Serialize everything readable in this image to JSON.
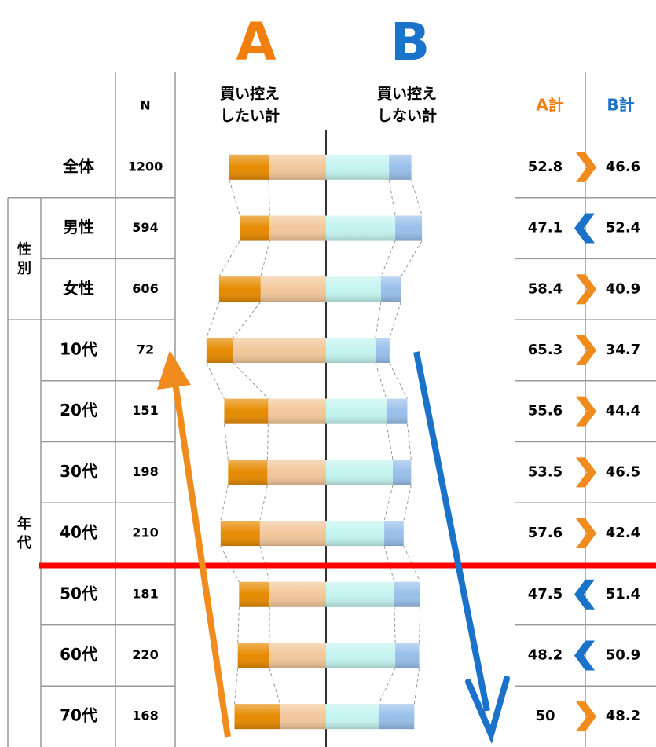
{
  "chart_data": {
    "type": "butterfly",
    "title_a": "A",
    "title_b": "B",
    "header_n": "N",
    "header_a": [
      "買い控え",
      "したい計"
    ],
    "header_b": [
      "買い控え",
      "しない計"
    ],
    "header_a_total": "A計",
    "header_b_total": "B計",
    "colors": {
      "a_strong": "#e68a00",
      "a_weak": "#f2c79a",
      "b_weak": "#c4f4f0",
      "b_strong": "#99bfea",
      "a_mark": "#f08c1e",
      "b_mark": "#1a73c8"
    },
    "groups": [
      {
        "label": [
          "性",
          "別"
        ],
        "rows": [
          1,
          2
        ]
      },
      {
        "label": [
          "年",
          "代"
        ],
        "rows": [
          3,
          9
        ]
      }
    ],
    "rows": [
      {
        "label": "全体",
        "n": 1200,
        "a_strong": 21.5,
        "a_weak": 31.3,
        "b_weak": 34.4,
        "b_strong": 12.2,
        "a_total": 52.8,
        "b_total": 46.6
      },
      {
        "label": "男性",
        "n": 594,
        "a_strong": 16.3,
        "a_weak": 30.8,
        "b_weak": 37.8,
        "b_strong": 14.6,
        "a_total": 47.1,
        "b_total": 52.4
      },
      {
        "label": "女性",
        "n": 606,
        "a_strong": 22.7,
        "a_weak": 35.7,
        "b_weak": 30.0,
        "b_strong": 10.9,
        "a_total": 58.4,
        "b_total": 40.9
      },
      {
        "label": "10代",
        "n": 72,
        "a_strong": 14.6,
        "a_weak": 50.7,
        "b_weak": 27.0,
        "b_strong": 7.7,
        "a_total": 65.3,
        "b_total": 34.7
      },
      {
        "label": "20代",
        "n": 151,
        "a_strong": 24.0,
        "a_weak": 31.6,
        "b_weak": 33.0,
        "b_strong": 11.4,
        "a_total": 55.6,
        "b_total": 44.4
      },
      {
        "label": "30代",
        "n": 198,
        "a_strong": 21.5,
        "a_weak": 32.0,
        "b_weak": 36.5,
        "b_strong": 10.0,
        "a_total": 53.5,
        "b_total": 46.5
      },
      {
        "label": "40代",
        "n": 210,
        "a_strong": 21.5,
        "a_weak": 36.1,
        "b_weak": 31.8,
        "b_strong": 10.6,
        "a_total": 57.6,
        "b_total": 42.4
      },
      {
        "label": "50代",
        "n": 181,
        "a_strong": 16.7,
        "a_weak": 30.8,
        "b_weak": 37.3,
        "b_strong": 14.1,
        "a_total": 47.5,
        "b_total": 51.4
      },
      {
        "label": "60代",
        "n": 220,
        "a_strong": 17.2,
        "a_weak": 31.0,
        "b_weak": 37.8,
        "b_strong": 13.1,
        "a_total": 48.2,
        "b_total": 50.9
      },
      {
        "label": "70代",
        "n": 168,
        "a_strong": 24.9,
        "a_weak": 25.1,
        "b_weak": 28.8,
        "b_strong": 19.4,
        "a_total": 50.0,
        "b_total": 48.2
      }
    ]
  }
}
